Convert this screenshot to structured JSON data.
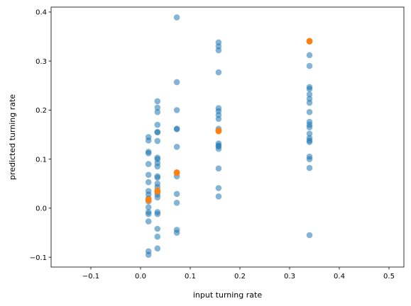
{
  "chart_data": {
    "type": "scatter",
    "xlabel": "input turning rate",
    "ylabel": "predicted turning rate",
    "xlim": [
      -0.18,
      0.53
    ],
    "ylim": [
      -0.12,
      0.41
    ],
    "xticks": [
      -0.1,
      0.0,
      0.1,
      0.2,
      0.3,
      0.4,
      0.5
    ],
    "yticks": [
      -0.1,
      0.0,
      0.1,
      0.2,
      0.3,
      0.4
    ],
    "xtick_labels": [
      "−0.1",
      "0.0",
      "0.1",
      "0.2",
      "0.3",
      "0.4",
      "0.5"
    ],
    "ytick_labels": [
      "−0.1",
      "0.0",
      "0.1",
      "0.2",
      "0.3",
      "0.4"
    ],
    "grid": false,
    "series": [
      {
        "color": "#1f77b4",
        "alpha": 0.55,
        "points": [
          [
            0.016,
            0.145
          ],
          [
            0.016,
            0.138
          ],
          [
            0.016,
            0.115
          ],
          [
            0.016,
            0.112
          ],
          [
            0.016,
            0.09
          ],
          [
            0.016,
            0.068
          ],
          [
            0.016,
            0.053
          ],
          [
            0.016,
            0.035
          ],
          [
            0.016,
            0.028
          ],
          [
            0.016,
            0.02
          ],
          [
            0.016,
            0.014
          ],
          [
            0.016,
            0.002
          ],
          [
            0.016,
            -0.008
          ],
          [
            0.016,
            -0.012
          ],
          [
            0.016,
            -0.027
          ],
          [
            0.016,
            -0.088
          ],
          [
            0.016,
            -0.095
          ],
          [
            0.034,
            0.218
          ],
          [
            0.034,
            0.205
          ],
          [
            0.034,
            0.196
          ],
          [
            0.034,
            0.17
          ],
          [
            0.034,
            0.155
          ],
          [
            0.034,
            0.155
          ],
          [
            0.034,
            0.137
          ],
          [
            0.034,
            0.103
          ],
          [
            0.034,
            0.1
          ],
          [
            0.034,
            0.092
          ],
          [
            0.034,
            0.085
          ],
          [
            0.034,
            0.065
          ],
          [
            0.034,
            0.062
          ],
          [
            0.034,
            0.05
          ],
          [
            0.034,
            0.043
          ],
          [
            0.034,
            0.033
          ],
          [
            0.034,
            0.028
          ],
          [
            0.034,
            0.022
          ],
          [
            0.034,
            -0.008
          ],
          [
            0.034,
            -0.012
          ],
          [
            0.034,
            -0.042
          ],
          [
            0.034,
            -0.058
          ],
          [
            0.034,
            -0.082
          ],
          [
            0.073,
            0.389
          ],
          [
            0.073,
            0.257
          ],
          [
            0.073,
            0.2
          ],
          [
            0.073,
            0.162
          ],
          [
            0.073,
            0.161
          ],
          [
            0.073,
            0.125
          ],
          [
            0.073,
            0.072
          ],
          [
            0.073,
            0.065
          ],
          [
            0.073,
            0.029
          ],
          [
            0.073,
            0.011
          ],
          [
            0.073,
            -0.044
          ],
          [
            0.073,
            -0.05
          ],
          [
            0.157,
            0.338
          ],
          [
            0.157,
            0.33
          ],
          [
            0.157,
            0.322
          ],
          [
            0.157,
            0.277
          ],
          [
            0.157,
            0.204
          ],
          [
            0.157,
            0.198
          ],
          [
            0.157,
            0.19
          ],
          [
            0.157,
            0.182
          ],
          [
            0.157,
            0.162
          ],
          [
            0.157,
            0.158
          ],
          [
            0.157,
            0.132
          ],
          [
            0.157,
            0.128
          ],
          [
            0.157,
            0.126
          ],
          [
            0.157,
            0.121
          ],
          [
            0.157,
            0.081
          ],
          [
            0.157,
            0.041
          ],
          [
            0.157,
            0.024
          ],
          [
            0.34,
            0.34
          ],
          [
            0.34,
            0.312
          ],
          [
            0.34,
            0.29
          ],
          [
            0.34,
            0.247
          ],
          [
            0.34,
            0.243
          ],
          [
            0.34,
            0.232
          ],
          [
            0.34,
            0.223
          ],
          [
            0.34,
            0.215
          ],
          [
            0.34,
            0.196
          ],
          [
            0.34,
            0.176
          ],
          [
            0.34,
            0.17
          ],
          [
            0.34,
            0.165
          ],
          [
            0.34,
            0.152
          ],
          [
            0.34,
            0.143
          ],
          [
            0.34,
            0.138
          ],
          [
            0.34,
            0.135
          ],
          [
            0.34,
            0.105
          ],
          [
            0.34,
            0.1
          ],
          [
            0.34,
            0.082
          ],
          [
            0.34,
            -0.055
          ]
        ]
      },
      {
        "color": "#ff7f0e",
        "alpha": 0.95,
        "points": [
          [
            0.016,
            0.016
          ],
          [
            0.016,
            0.018
          ],
          [
            0.034,
            0.034
          ],
          [
            0.034,
            0.036
          ],
          [
            0.073,
            0.072
          ],
          [
            0.073,
            0.073
          ],
          [
            0.157,
            0.157
          ],
          [
            0.157,
            0.158
          ],
          [
            0.34,
            0.34
          ],
          [
            0.34,
            0.341
          ]
        ]
      }
    ]
  }
}
